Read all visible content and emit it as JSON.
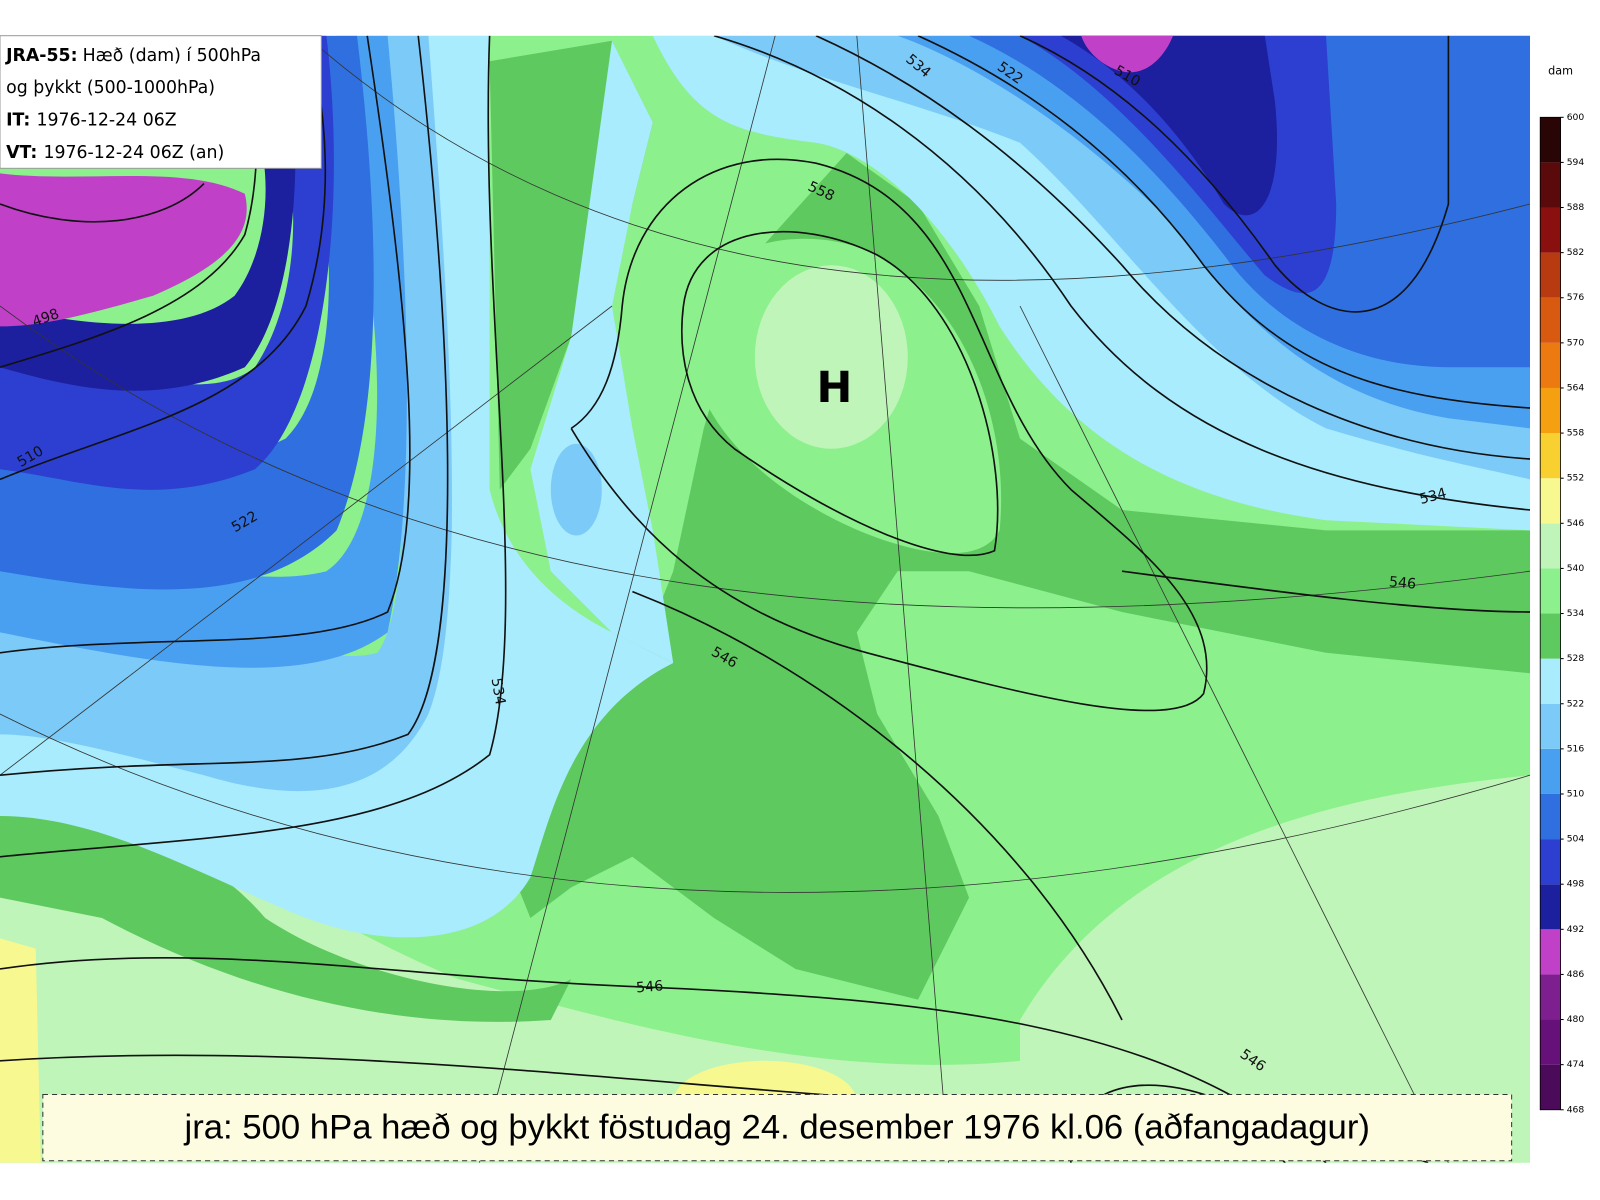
{
  "legend": {
    "model": "JRA-55:",
    "line1": "Hæð (dam) í 500hPa",
    "line2": "og þykkt (500-1000hPa)",
    "it_label": "IT:",
    "it": "1976-12-24 06Z",
    "vt_label": "VT:",
    "vt": "1976-12-24 06Z (an)"
  },
  "high_label": "H",
  "contour_labels": [
    "498",
    "510",
    "522",
    "534",
    "546",
    "558",
    "534",
    "522",
    "510",
    "534",
    "546",
    "546",
    "546"
  ],
  "colorbar": {
    "unit": "dam",
    "ticks": [
      468,
      474,
      480,
      486,
      492,
      498,
      504,
      510,
      516,
      522,
      528,
      534,
      540,
      546,
      552,
      558,
      564,
      570,
      576,
      582,
      588,
      594,
      600
    ],
    "colors": [
      "#4b0a5a",
      "#66117a",
      "#7d1f8f",
      "#c040c8",
      "#1c1f9e",
      "#2c3fd0",
      "#2f6fe0",
      "#4aa0f0",
      "#7ccaf8",
      "#a8ecfd",
      "#5ec95e",
      "#8cf08c",
      "#bff5b8",
      "#f8f890",
      "#f8d030",
      "#f5a010",
      "#ec7a10",
      "#d85a10",
      "#b83a10",
      "#8a1010",
      "#5a0a0a",
      "#2a0505"
    ]
  },
  "caption": "jra: 500 hPa hæð og þykkt föstudag 24. desember 1976 kl.06 (aðfangadagur)"
}
